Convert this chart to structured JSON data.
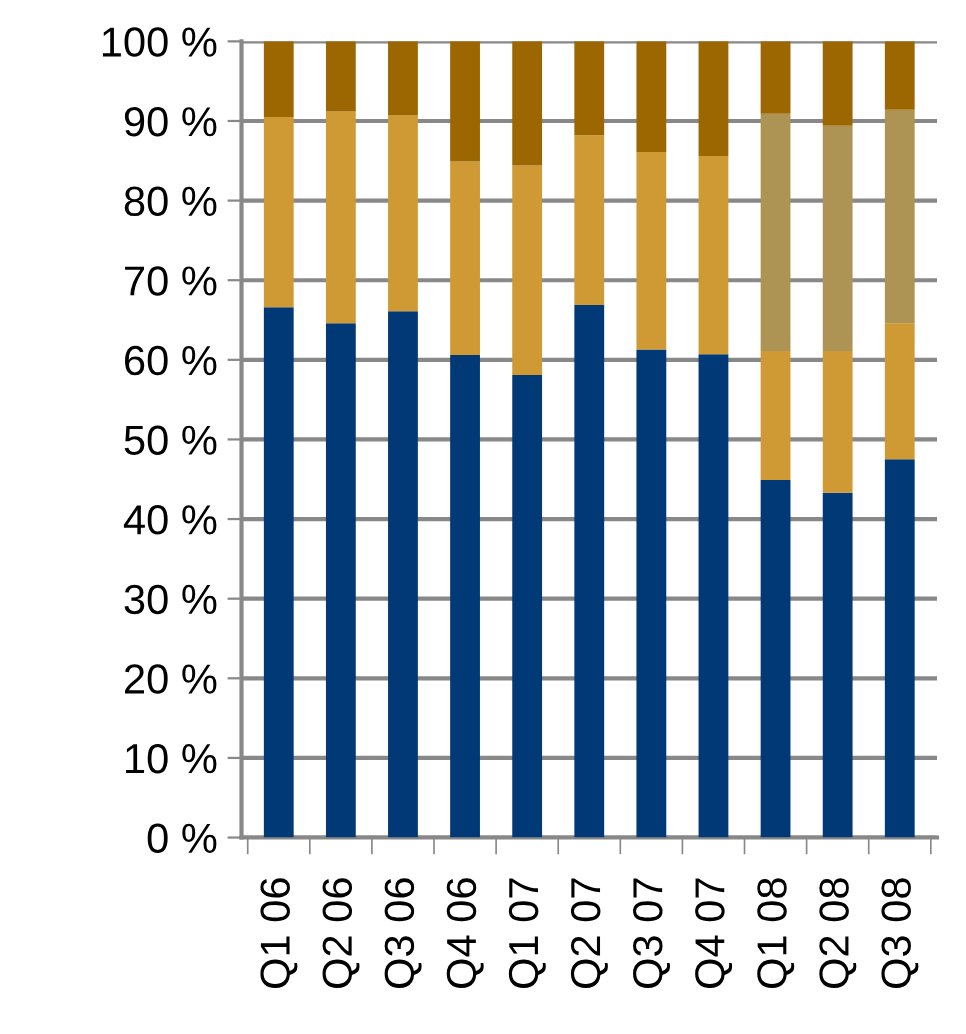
{
  "chart_data": {
    "type": "bar",
    "stacked": true,
    "categories": [
      "Q1 06",
      "Q2 06",
      "Q3 06",
      "Q4 06",
      "Q1 07",
      "Q2 07",
      "Q3 07",
      "Q4 07",
      "Q1 08",
      "Q2 08",
      "Q3 08"
    ],
    "series": [
      {
        "color": "#003976",
        "values": [
          66.6,
          64.6,
          66.1,
          60.6,
          58.1,
          66.9,
          61.3,
          60.7,
          44.9,
          43.3,
          47.5
        ]
      },
      {
        "color": "#cf9a33",
        "values": [
          23.9,
          26.6,
          24.6,
          24.3,
          26.3,
          21.3,
          24.8,
          24.9,
          16.2,
          17.8,
          17.1
        ]
      },
      {
        "color": "#ad9455",
        "values": [
          null,
          null,
          null,
          null,
          null,
          null,
          null,
          null,
          29.8,
          28.3,
          26.8
        ]
      },
      {
        "color": "#9c6600",
        "values": [
          9.5,
          8.8,
          9.3,
          15.1,
          15.6,
          11.8,
          13.9,
          14.4,
          9.1,
          10.6,
          8.6
        ]
      }
    ],
    "ylim": [
      0,
      100
    ],
    "yticks": [
      {
        "value": 0,
        "label": "0 %"
      },
      {
        "value": 10,
        "label": "10 %"
      },
      {
        "value": 20,
        "label": "20 %"
      },
      {
        "value": 30,
        "label": "30 %"
      },
      {
        "value": 40,
        "label": "40 %"
      },
      {
        "value": 50,
        "label": "50 %"
      },
      {
        "value": 60,
        "label": "60 %"
      },
      {
        "value": 70,
        "label": "70 %"
      },
      {
        "value": 80,
        "label": "80 %"
      },
      {
        "value": 90,
        "label": "90 %"
      },
      {
        "value": 100,
        "label": "100 %"
      }
    ],
    "grid": "y"
  }
}
